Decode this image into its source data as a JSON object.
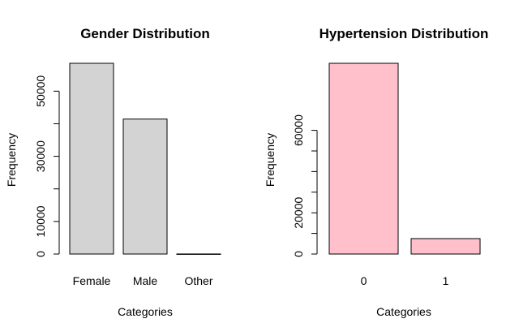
{
  "chart_data": [
    {
      "type": "bar",
      "title": "Gender Distribution",
      "xlabel": "Categories",
      "ylabel": "Frequency",
      "categories": [
        "Female",
        "Male",
        "Other"
      ],
      "values": [
        58552,
        41430,
        18
      ],
      "ylim": [
        0,
        58552
      ],
      "yticks": [
        0,
        10000,
        30000,
        50000
      ],
      "ytick_labels": [
        "0",
        "10000",
        "30000",
        "50000"
      ],
      "bar_color": "#d3d3d3",
      "grid": false,
      "legend": "none"
    },
    {
      "type": "bar",
      "title": "Hypertension Distribution",
      "xlabel": "Categories",
      "ylabel": "Frequency",
      "categories": [
        "0",
        "1"
      ],
      "values": [
        92515,
        7485
      ],
      "ylim": [
        0,
        92515
      ],
      "yticks": [
        0,
        20000,
        60000
      ],
      "ytick_labels": [
        "0",
        "20000",
        "60000"
      ],
      "bar_color": "#ffc0cb",
      "grid": false,
      "legend": "none"
    }
  ]
}
